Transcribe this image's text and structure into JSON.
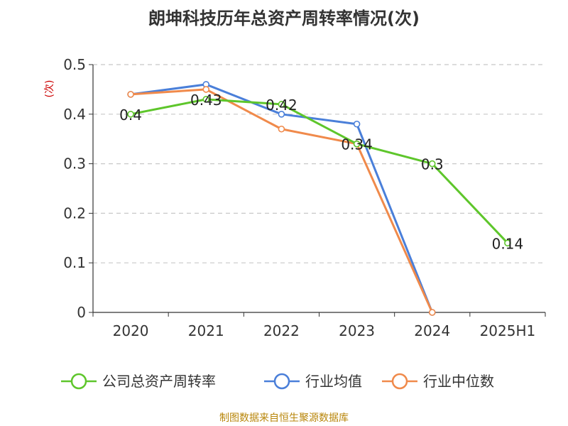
{
  "chart_data": {
    "type": "line",
    "title": "朗坤科技历年总资产周转率情况(次)",
    "ylabel": "(次)",
    "categories": [
      "2020",
      "2021",
      "2022",
      "2023",
      "2024",
      "2025H1"
    ],
    "ylim": [
      0,
      0.5
    ],
    "yticks": [
      "0",
      "0.1",
      "0.2",
      "0.3",
      "0.4",
      "0.5"
    ],
    "grid": true,
    "legend_position": "bottom",
    "series": [
      {
        "name": "公司总资产周转率",
        "color": "#5ec62b",
        "values": [
          0.4,
          0.43,
          0.42,
          0.34,
          0.3,
          0.14
        ],
        "labels": [
          "0.4",
          "0.43",
          "0.42",
          "0.34",
          "0.3",
          "0.14"
        ]
      },
      {
        "name": "行业均值",
        "color": "#4a7fd9",
        "values": [
          0.44,
          0.46,
          0.4,
          0.38,
          0.0,
          null
        ]
      },
      {
        "name": "行业中位数",
        "color": "#f08a4b",
        "values": [
          0.44,
          0.45,
          0.37,
          0.34,
          0.0,
          null
        ]
      }
    ]
  },
  "source": "制图数据来自恒生聚源数据库"
}
